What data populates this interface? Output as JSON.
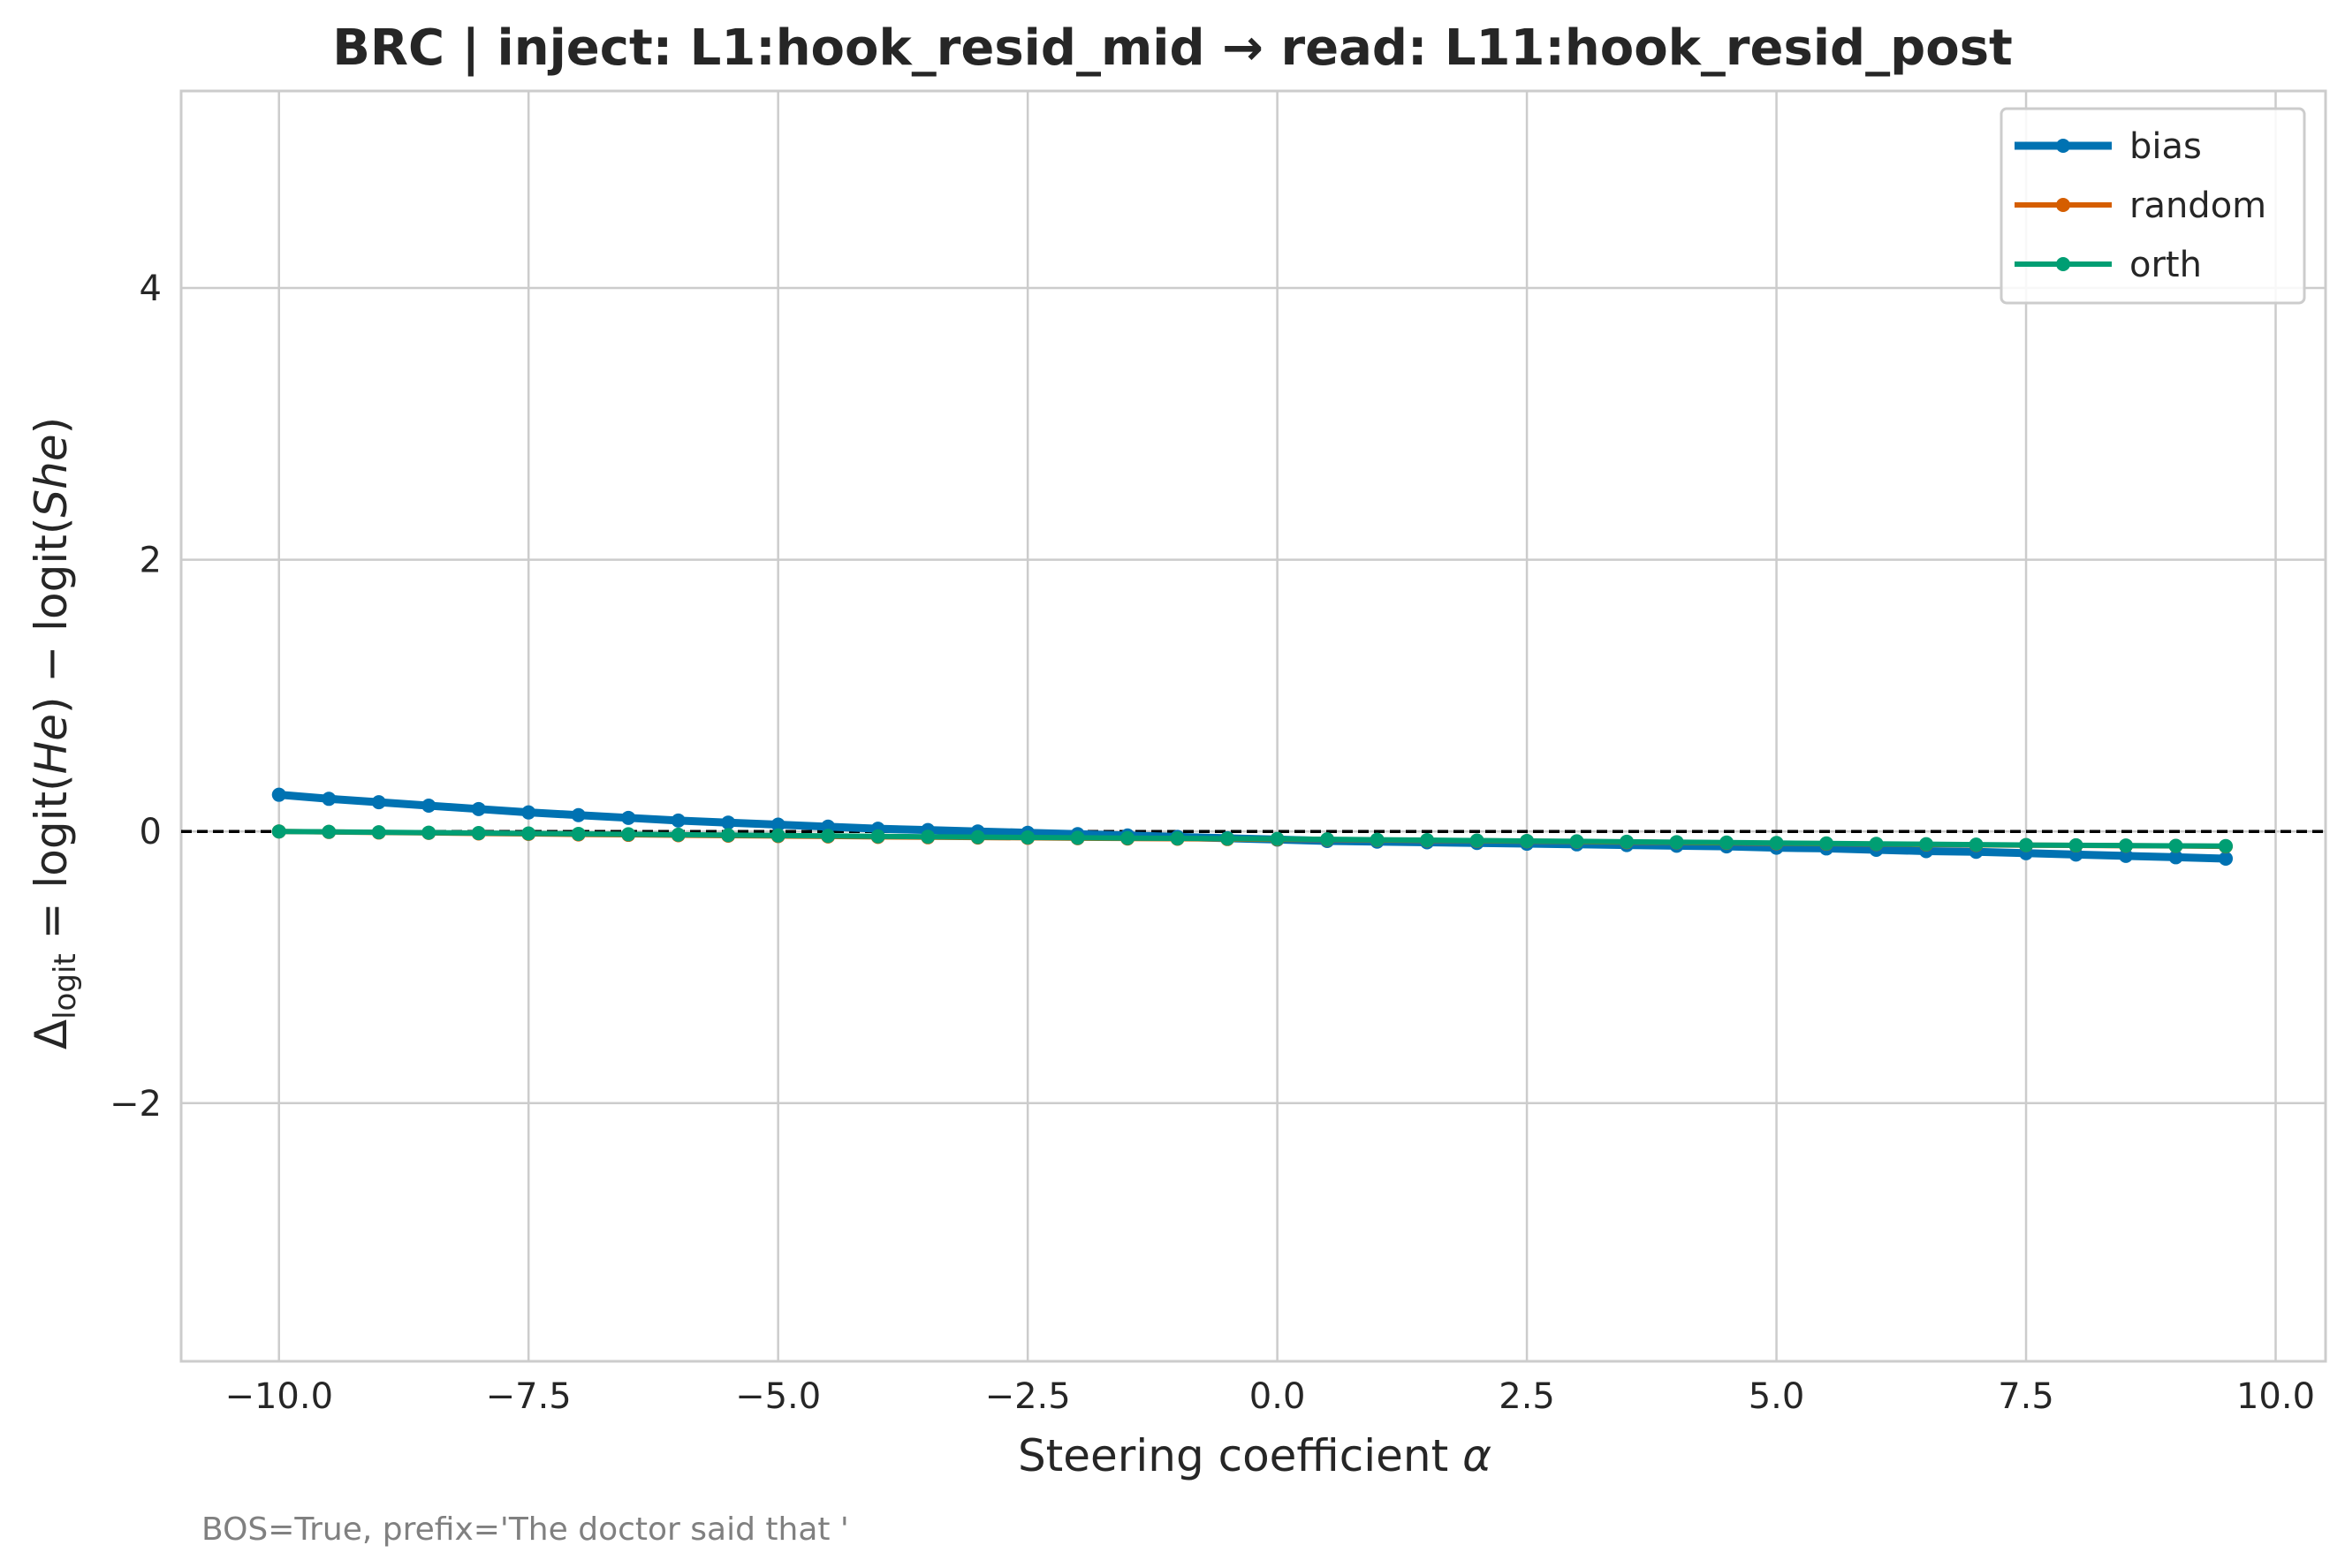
{
  "chart_data": {
    "type": "line",
    "title": "BRC | inject: L1:hook_resid_mid → read: L11:hook_resid_post",
    "xlabel_prefix": "Steering coefficient ",
    "xlabel_symbol": "α",
    "ylabel_delta": "Δ",
    "ylabel_sub": "logit",
    "ylabel_eq": " = logit(",
    "ylabel_he": "He",
    "ylabel_mid": ") − logit(",
    "ylabel_she": "She",
    "ylabel_end": ")",
    "xlim": [
      -10.98,
      10.5
    ],
    "ylim": [
      -3.9,
      5.45
    ],
    "xticks": [
      -10.0,
      -7.5,
      -5.0,
      -2.5,
      0.0,
      2.5,
      5.0,
      7.5,
      10.0
    ],
    "xtick_labels": [
      "−10.0",
      "−7.5",
      "−5.0",
      "−2.5",
      "0.0",
      "2.5",
      "5.0",
      "7.5",
      "10.0"
    ],
    "yticks": [
      -2,
      0,
      2,
      4
    ],
    "ytick_labels": [
      "−2",
      "0",
      "2",
      "4"
    ],
    "grid": true,
    "zero_line": {
      "y": 0,
      "style": "dashed",
      "color": "#000000"
    },
    "legend": {
      "placement": "top-right",
      "entries": [
        "bias",
        "random",
        "orth"
      ]
    },
    "x": [
      -10.0,
      -9.5,
      -9.0,
      -8.5,
      -8.0,
      -7.5,
      -7.0,
      -6.5,
      -6.0,
      -5.5,
      -5.0,
      -4.5,
      -4.0,
      -3.5,
      -3.0,
      -2.5,
      -2.0,
      -1.5,
      -1.0,
      -0.5,
      0.0,
      0.5,
      1.0,
      1.5,
      2.0,
      2.5,
      3.0,
      3.5,
      4.0,
      4.5,
      5.0,
      5.5,
      6.0,
      6.5,
      7.0,
      7.5,
      8.0,
      8.5,
      9.0,
      9.5
    ],
    "series": [
      {
        "name": "bias",
        "color": "#0072b2",
        "line_width": 9,
        "values": [
          0.27,
          0.24,
          0.215,
          0.19,
          0.165,
          0.14,
          0.12,
          0.1,
          0.08,
          0.065,
          0.05,
          0.035,
          0.02,
          0.01,
          0.0,
          -0.01,
          -0.02,
          -0.03,
          -0.04,
          -0.05,
          -0.06,
          -0.07,
          -0.075,
          -0.08,
          -0.085,
          -0.09,
          -0.095,
          -0.1,
          -0.105,
          -0.11,
          -0.12,
          -0.125,
          -0.135,
          -0.145,
          -0.15,
          -0.16,
          -0.17,
          -0.18,
          -0.19,
          -0.2
        ]
      },
      {
        "name": "random",
        "color": "#d55e00",
        "line_width": 6,
        "values": [
          0.0,
          -0.004,
          -0.008,
          -0.011,
          -0.015,
          -0.018,
          -0.022,
          -0.025,
          -0.028,
          -0.031,
          -0.034,
          -0.037,
          -0.04,
          -0.043,
          -0.045,
          -0.047,
          -0.05,
          -0.052,
          -0.054,
          -0.056,
          -0.058,
          -0.06,
          -0.063,
          -0.066,
          -0.069,
          -0.072,
          -0.075,
          -0.078,
          -0.081,
          -0.084,
          -0.087,
          -0.09,
          -0.093,
          -0.096,
          -0.099,
          -0.101,
          -0.103,
          -0.105,
          -0.107,
          -0.11
        ]
      },
      {
        "name": "orth",
        "color": "#009e73",
        "line_width": 6,
        "values": [
          0.0,
          -0.003,
          -0.006,
          -0.009,
          -0.012,
          -0.015,
          -0.018,
          -0.021,
          -0.024,
          -0.027,
          -0.03,
          -0.033,
          -0.036,
          -0.039,
          -0.042,
          -0.044,
          -0.047,
          -0.049,
          -0.051,
          -0.053,
          -0.055,
          -0.058,
          -0.061,
          -0.064,
          -0.067,
          -0.07,
          -0.073,
          -0.076,
          -0.079,
          -0.082,
          -0.085,
          -0.088,
          -0.091,
          -0.094,
          -0.097,
          -0.1,
          -0.102,
          -0.104,
          -0.106,
          -0.108
        ]
      }
    ],
    "annotation": "BOS=True, prefix='The doctor said that '"
  }
}
